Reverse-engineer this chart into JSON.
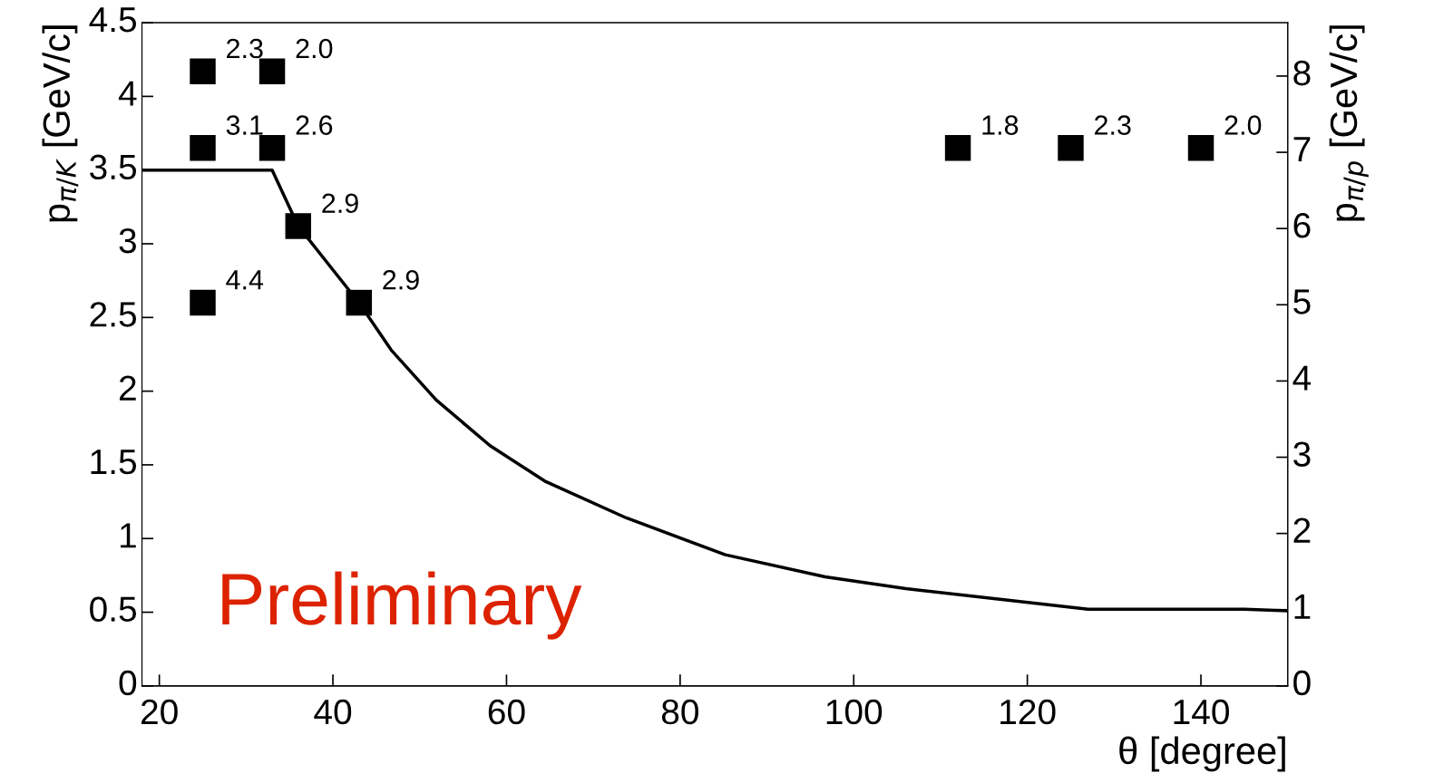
{
  "chart_data": {
    "type": "scatter",
    "xlabel": "θ [degree]",
    "ylabel": "p$_{π/K}$ [GeV/c]",
    "y2label": "p$_{π/p}$ [GeV/c]",
    "xlim": [
      18,
      150
    ],
    "xticks": [
      20,
      40,
      60,
      80,
      100,
      120,
      140
    ],
    "ylim": [
      0,
      4.5
    ],
    "yticks": [
      0,
      0.5,
      1,
      1.5,
      2,
      2.5,
      3,
      3.5,
      4,
      4.5
    ],
    "y2lim": [
      0,
      8.7
    ],
    "y2ticks": [
      0,
      1,
      2,
      3,
      4,
      5,
      6,
      7,
      8
    ],
    "grid": false,
    "legend": false,
    "series": [
      {
        "type": "line",
        "color": "#000000",
        "x": [
          18,
          33,
          36,
          43,
          46.7,
          51.9,
          58.1,
          64.4,
          73.8,
          85.2,
          96.7,
          106,
          116.6,
          127,
          145,
          150
        ],
        "values": [
          3.5,
          3.5,
          3.12,
          2.6,
          2.28,
          1.94,
          1.63,
          1.39,
          1.14,
          0.89,
          0.74,
          0.66,
          0.59,
          0.52,
          0.52,
          0.51
        ]
      },
      {
        "marker": "square",
        "color": "#000000",
        "x": [
          25,
          33,
          25,
          33,
          36,
          25,
          43,
          112,
          125,
          140
        ],
        "values": [
          4.17,
          4.17,
          3.65,
          3.65,
          3.12,
          2.6,
          2.6,
          3.65,
          3.65,
          3.65
        ]
      }
    ],
    "annotations": [
      {
        "text": "2.3",
        "x": 25,
        "y": 4.17
      },
      {
        "text": "2.0",
        "x": 33,
        "y": 4.17
      },
      {
        "text": "3.1",
        "x": 25,
        "y": 3.65
      },
      {
        "text": "2.6",
        "x": 33,
        "y": 3.65
      },
      {
        "text": "2.9",
        "x": 36,
        "y": 3.12
      },
      {
        "text": "4.4",
        "x": 25,
        "y": 2.6
      },
      {
        "text": "2.9",
        "x": 43,
        "y": 2.6
      },
      {
        "text": "1.8",
        "x": 112,
        "y": 3.65
      },
      {
        "text": "2.3",
        "x": 125,
        "y": 3.65
      },
      {
        "text": "2.0",
        "x": 140,
        "y": 3.65
      },
      "Preliminary"
    ]
  }
}
